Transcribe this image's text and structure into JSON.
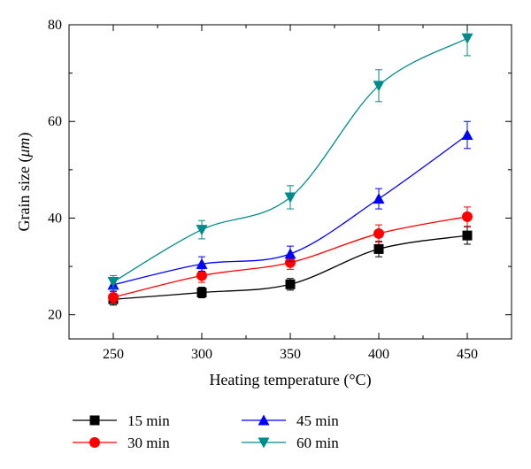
{
  "chart_data": {
    "type": "line",
    "title": "",
    "xlabel": "Heating temperature (°C)",
    "ylabel_prefix": "Grain size (",
    "ylabel_unit": "μm",
    "ylabel_suffix": ")",
    "x": [
      250,
      300,
      350,
      400,
      450
    ],
    "xlim": [
      225,
      475
    ],
    "ylim": [
      15,
      80
    ],
    "xticks": [
      "250",
      "300",
      "350",
      "400",
      "450"
    ],
    "yticks": [
      "20",
      "40",
      "60",
      "80"
    ],
    "grid": false,
    "legend_position": "bottom",
    "series": [
      {
        "name": "15 min",
        "color": "#000000",
        "marker": "square",
        "values": [
          23.2,
          24.6,
          26.3,
          33.6,
          36.4
        ],
        "errors": [
          1.2,
          1.1,
          1.2,
          1.6,
          1.8
        ]
      },
      {
        "name": "30 min",
        "color": "#ff0000",
        "marker": "circle",
        "values": [
          23.6,
          28.1,
          30.8,
          36.8,
          40.3
        ],
        "errors": [
          1.2,
          1.4,
          1.4,
          1.8,
          2.0
        ]
      },
      {
        "name": "45 min",
        "color": "#0000ff",
        "marker": "triangle-up",
        "values": [
          26.2,
          30.5,
          32.6,
          44.0,
          57.2
        ],
        "errors": [
          1.3,
          1.5,
          1.6,
          2.1,
          2.8
        ]
      },
      {
        "name": "60 min",
        "color": "#008b8b",
        "marker": "triangle-down",
        "values": [
          26.8,
          37.6,
          44.3,
          67.4,
          77.2
        ],
        "errors": [
          1.3,
          1.9,
          2.4,
          3.3,
          3.6
        ]
      }
    ]
  }
}
